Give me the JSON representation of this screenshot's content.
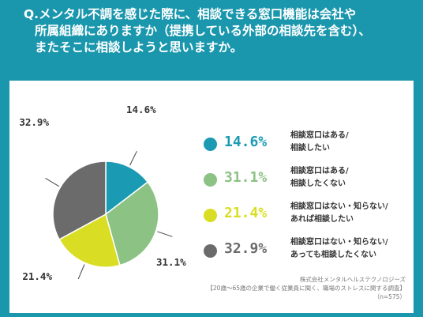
{
  "question": {
    "line1": "Q.メンタル不調を感じた際に、相談できる窓口機能は会社や",
    "line2": "所属組織にありますか（提携している外部の相談先を含む）、",
    "line3": "またそこに相談しようと思いますか。"
  },
  "chart_data": {
    "type": "pie",
    "title": "",
    "unit": "%",
    "slices": [
      {
        "value": 14.6,
        "label": "14.6%",
        "color": "#1b9bb3",
        "desc1": "相談窓口はある/",
        "desc2": "相談したい"
      },
      {
        "value": 31.1,
        "label": "31.1%",
        "color": "#8cc284",
        "desc1": "相談窓口はある/",
        "desc2": "相談したくない"
      },
      {
        "value": 21.4,
        "label": "21.4%",
        "color": "#d9de24",
        "desc1": "相談窓口はない・知らない/",
        "desc2": "あれば相談したい"
      },
      {
        "value": 32.9,
        "label": "32.9%",
        "color": "#6b6b6b",
        "desc1": "相談窓口はない・知らない/",
        "desc2": "あっても相談したくない"
      }
    ],
    "start_angle": "12 o'clock",
    "direction": "clockwise"
  },
  "source": {
    "company": "株式会社メンタルヘルステクノロジーズ",
    "survey": "【20歳～65歳の企業で働く従業員に聞く、職場のストレスに関する調査】",
    "n": "（n=575）"
  }
}
